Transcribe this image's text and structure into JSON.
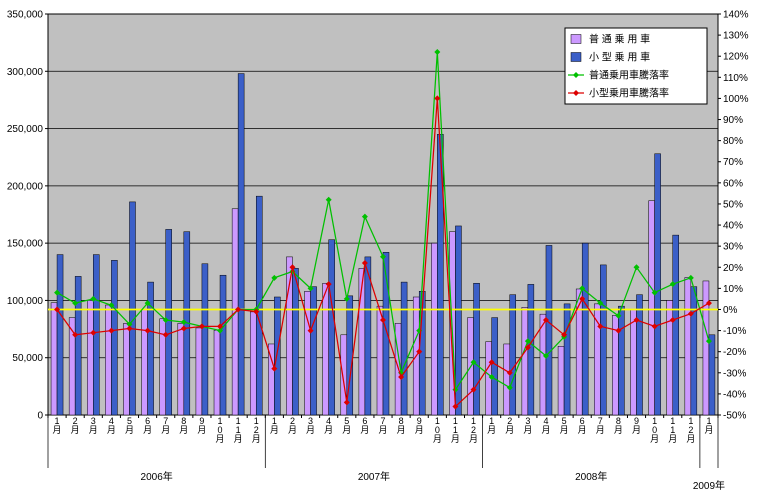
{
  "chart_data": {
    "type": "bar",
    "title": "",
    "categories": [
      "1月",
      "2月",
      "3月",
      "4月",
      "5月",
      "6月",
      "7月",
      "8月",
      "9月",
      "10月",
      "11月",
      "12月",
      "1月",
      "2月",
      "3月",
      "4月",
      "5月",
      "6月",
      "7月",
      "8月",
      "9月",
      "10月",
      "11月",
      "12月",
      "1月",
      "2月",
      "3月",
      "4月",
      "5月",
      "6月",
      "7月",
      "8月",
      "9月",
      "10月",
      "11月",
      "12月",
      "1月"
    ],
    "year_groups": [
      {
        "label": "2006年",
        "start": 0,
        "count": 12
      },
      {
        "label": "2007年",
        "start": 12,
        "count": 12
      },
      {
        "label": "2008年",
        "start": 24,
        "count": 12
      },
      {
        "label": "2009年",
        "start": 36,
        "count": 1
      }
    ],
    "bar_series": [
      {
        "name": "普 通 乗 用 車",
        "color": "#CC99FF",
        "values": [
          98000,
          85000,
          100000,
          96000,
          80000,
          92000,
          84000,
          80000,
          76000,
          74000,
          180000,
          90000,
          62000,
          138000,
          108000,
          115000,
          70000,
          128000,
          95000,
          80000,
          103000,
          150000,
          160000,
          85000,
          64000,
          62000,
          94000,
          88000,
          60000,
          110000,
          97000,
          87000,
          92000,
          187000,
          100000,
          120000,
          117000
        ]
      },
      {
        "name": "小 型 乗 用 車",
        "color": "#3B5FC8",
        "values": [
          140000,
          121000,
          140000,
          135000,
          186000,
          116000,
          162000,
          160000,
          132000,
          122000,
          298000,
          191000,
          103000,
          128000,
          112000,
          153000,
          104000,
          138000,
          142000,
          116000,
          108000,
          245000,
          165000,
          115000,
          85000,
          105000,
          114000,
          148000,
          97000,
          150000,
          131000,
          95000,
          105000,
          228000,
          157000,
          112000,
          70000
        ]
      }
    ],
    "line_series": [
      {
        "name": "普通乗用車騰落率",
        "color": "#00C000",
        "values": [
          8,
          3,
          5,
          2,
          -7,
          3,
          -5,
          -6,
          -8,
          -10,
          0,
          0,
          15,
          18,
          10,
          52,
          5,
          44,
          25,
          -30,
          -10,
          122,
          -38,
          -25,
          -32,
          -37,
          -15,
          -22,
          -13,
          10,
          3,
          -3,
          20,
          8,
          12,
          15,
          -15
        ]
      },
      {
        "name": "小型乗用車騰落率",
        "color": "#DD0000",
        "values": [
          0,
          -12,
          -11,
          -10,
          -9,
          -10,
          -12,
          -9,
          -8,
          -8,
          0,
          -1,
          -28,
          20,
          -10,
          12,
          -44,
          22,
          -5,
          -32,
          -20,
          100,
          -46,
          -38,
          -25,
          -30,
          -18,
          -5,
          -12,
          5,
          -8,
          -10,
          -5,
          -8,
          -5,
          -2,
          3
        ]
      }
    ],
    "left_axis": {
      "min": 0,
      "max": 350000,
      "step": 50000,
      "tick_labels": [
        "0",
        "50,000",
        "100,000",
        "150,000",
        "200,000",
        "250,000",
        "300,000",
        "350,000"
      ]
    },
    "right_axis": {
      "min": -50,
      "max": 140,
      "step": 10,
      "tick_labels": [
        "-50%",
        "-40%",
        "-30%",
        "-20%",
        "-10%",
        "0%",
        "10%",
        "20%",
        "30%",
        "40%",
        "50%",
        "60%",
        "70%",
        "80%",
        "90%",
        "100%",
        "110%",
        "120%",
        "130%",
        "140%"
      ]
    },
    "plot_bg": "#C0C0C0",
    "grid_color": "#000000",
    "zero_line_color": "#FFFF00",
    "legend_position": "top-right",
    "grid": true
  }
}
